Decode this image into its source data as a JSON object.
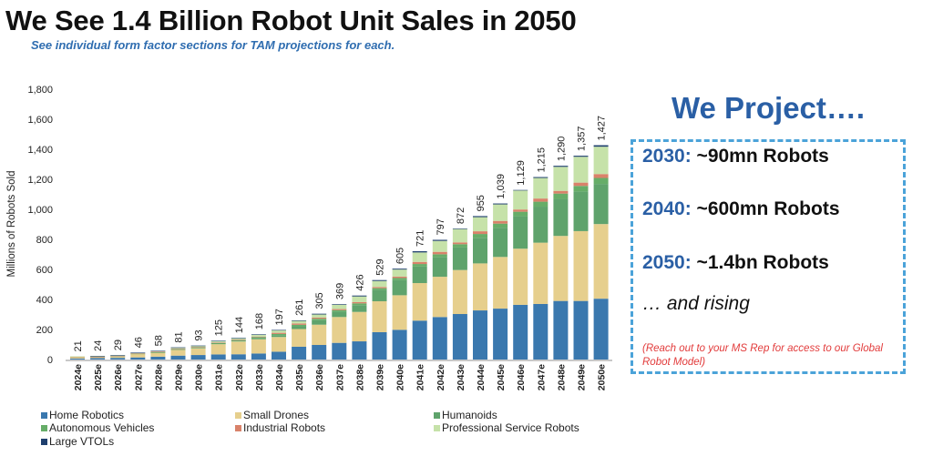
{
  "header": {
    "title": "We See 1.4 Billion Robot Unit Sales in 2050",
    "subtitle": "See individual form factor sections for TAM projections for each."
  },
  "chart_data": {
    "type": "bar",
    "stacked": true,
    "title": "We See 1.4 Billion Robot Unit Sales in 2050",
    "xlabel": "",
    "ylabel": "Millions of Robots Sold",
    "ylim": [
      0,
      1800
    ],
    "yticks": [
      0,
      200,
      400,
      600,
      800,
      1000,
      1200,
      1400,
      1600,
      1800
    ],
    "ytick_labels": [
      "0",
      "200",
      "400",
      "600",
      "800",
      "1,000",
      "1,200",
      "1,400",
      "1,600",
      "1,800"
    ],
    "grid": false,
    "legend_position": "bottom",
    "categories": [
      "2024e",
      "2025e",
      "2026e",
      "2027e",
      "2028e",
      "2029e",
      "2030e",
      "2031e",
      "2032e",
      "2033e",
      "2034e",
      "2035e",
      "2036e",
      "2037e",
      "2038e",
      "2039e",
      "2040e",
      "2041e",
      "2042e",
      "2043e",
      "2044e",
      "2045e",
      "2046e",
      "2047e",
      "2048e",
      "2049e",
      "2050e"
    ],
    "totals": [
      21,
      24,
      29,
      46,
      58,
      81,
      93,
      125,
      144,
      168,
      197,
      261,
      305,
      369,
      426,
      529,
      605,
      721,
      797,
      872,
      955,
      1039,
      1129,
      1215,
      1290,
      1357,
      1427
    ],
    "total_labels": [
      "21",
      "24",
      "29",
      "46",
      "58",
      "81",
      "93",
      "125",
      "144",
      "168",
      "197",
      "261",
      "305",
      "369",
      "426",
      "529",
      "605",
      "721",
      "797",
      "872",
      "955",
      "1,039",
      "1,129",
      "1,215",
      "1,290",
      "1,357",
      "1,427"
    ],
    "series": [
      {
        "name": "Home Robotics",
        "color": "#3a78ae",
        "values": [
          7,
          10,
          11,
          14,
          19,
          26,
          30,
          34,
          35,
          40,
          52,
          85,
          97,
          111,
          121,
          182,
          198,
          259,
          283,
          303,
          327,
          339,
          364,
          370,
          390,
          390,
          405
        ]
      },
      {
        "name": "Small Drones",
        "color": "#e6cf8d",
        "values": [
          10,
          6,
          7,
          22,
          27,
          40,
          45,
          68,
          85,
          95,
          98,
          118,
          135,
          172,
          196,
          206,
          230,
          250,
          268,
          293,
          313,
          344,
          374,
          408,
          433,
          465,
          497
        ]
      },
      {
        "name": "Humanoids",
        "color": "#5fa36c",
        "values": [
          0,
          0,
          0,
          0,
          1,
          2,
          3,
          4,
          5,
          8,
          12,
          18,
          30,
          36,
          45,
          75,
          100,
          110,
          130,
          150,
          170,
          195,
          216,
          240,
          247,
          264,
          267
        ]
      },
      {
        "name": "Autonomous Vehicles",
        "color": "#66ad68",
        "values": [
          1,
          2,
          3,
          3,
          3,
          4,
          4,
          5,
          5,
          6,
          8,
          10,
          10,
          10,
          12,
          12,
          15,
          17,
          20,
          22,
          26,
          27,
          30,
          33,
          35,
          37,
          40
        ]
      },
      {
        "name": "Industrial Robots",
        "color": "#d9826a",
        "values": [
          1,
          1,
          2,
          3,
          2,
          2,
          2,
          3,
          3,
          4,
          8,
          9,
          7,
          7,
          8,
          8,
          9,
          14,
          16,
          12,
          18,
          18,
          15,
          21,
          18,
          22,
          26
        ]
      },
      {
        "name": "Professional Service Robots",
        "color": "#c6e2a9",
        "values": [
          2,
          4,
          5,
          3,
          5,
          6,
          7,
          9,
          9,
          12,
          16,
          18,
          21,
          29,
          38,
          40,
          47,
          63,
          73,
          89,
          94,
          110,
          127,
          137,
          160,
          172,
          182
        ]
      },
      {
        "name": "Large VTOLs",
        "color": "#1f3f6e",
        "values": [
          0,
          1,
          1,
          1,
          1,
          1,
          2,
          2,
          2,
          3,
          3,
          3,
          5,
          4,
          6,
          6,
          6,
          8,
          7,
          3,
          7,
          6,
          3,
          6,
          7,
          7,
          10
        ]
      }
    ]
  },
  "legend": {
    "items": [
      {
        "label": "Home Robotics",
        "color": "#3a78ae"
      },
      {
        "label": "Small Drones",
        "color": "#e6cf8d"
      },
      {
        "label": "Humanoids",
        "color": "#5fa36c"
      },
      {
        "label": "Autonomous Vehicles",
        "color": "#66ad68"
      },
      {
        "label": "Industrial Robots",
        "color": "#d9826a"
      },
      {
        "label": "Professional Service Robots",
        "color": "#c6e2a9"
      },
      {
        "label": "Large VTOLs",
        "color": "#1f3f6e"
      }
    ]
  },
  "projection": {
    "heading": "We Project….",
    "lines": [
      {
        "year": "2030:",
        "value": " ~90mn Robots"
      },
      {
        "year": "2040:",
        "value": " ~600mn Robots"
      },
      {
        "year": "2050:",
        "value": " ~1.4bn Robots"
      }
    ],
    "rising": "… and rising",
    "note": "(Reach out to your MS Rep for access to our Global Robot Model)"
  },
  "colors": {
    "accent_blue": "#2a5fa5",
    "box_border": "#4ba3d9",
    "note_red": "#e23b3b"
  }
}
